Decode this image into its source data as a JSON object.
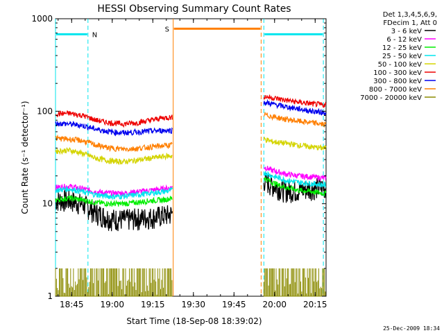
{
  "chart_data": {
    "type": "line",
    "title": "HESSI Observing Summary Count Rates",
    "xlabel": "Start Time (18-Sep-08 18:39:02)",
    "ylabel": "Count Rate (s⁻¹ detector⁻¹)",
    "y_scale": "log",
    "ylim": [
      1,
      1000
    ],
    "xlim_minutes_after_start": [
      0,
      100
    ],
    "x_ticks": [
      {
        "label": "18:45",
        "minute": 5.97
      },
      {
        "label": "19:00",
        "minute": 20.97
      },
      {
        "label": "19:15",
        "minute": 35.97
      },
      {
        "label": "19:30",
        "minute": 50.97
      },
      {
        "label": "19:45",
        "minute": 65.97
      },
      {
        "label": "20:00",
        "minute": 80.97
      },
      {
        "label": "20:15",
        "minute": 95.97
      }
    ],
    "y_ticks": [
      {
        "label": "1",
        "value": 1
      },
      {
        "label": "10",
        "value": 10
      },
      {
        "label": "100",
        "value": 100
      },
      {
        "label": "1000",
        "value": 1000
      }
    ],
    "legend": {
      "placement": "right",
      "header": [
        "Det 1,3,4,5,6,9,",
        "FDecim 1, Att 0"
      ],
      "entries": [
        {
          "label": "3 - 6 keV",
          "color": "#000000"
        },
        {
          "label": "6 - 12 keV",
          "color": "#ff00ff"
        },
        {
          "label": "12 - 25 keV",
          "color": "#00ee00"
        },
        {
          "label": "25 - 50 keV",
          "color": "#00e5ee"
        },
        {
          "label": "50 - 100 keV",
          "color": "#d4d400"
        },
        {
          "label": "100 - 300 keV",
          "color": "#ee0000"
        },
        {
          "label": "300 - 800 keV",
          "color": "#0000ee"
        },
        {
          "label": "800 - 7000 keV",
          "color": "#ff7f00"
        },
        {
          "label": "7000 - 20000 keV",
          "color": "#8b8b00"
        }
      ]
    },
    "segments": [
      [
        0,
        43.2
      ],
      [
        77.0,
        100
      ]
    ],
    "series": [
      {
        "label": "3 - 6 keV",
        "color": "#000000",
        "points": [
          [
            0,
            11
          ],
          [
            5,
            11
          ],
          [
            10,
            10
          ],
          [
            15,
            8
          ],
          [
            20,
            7
          ],
          [
            25,
            6.8
          ],
          [
            30,
            7
          ],
          [
            35,
            7.2
          ],
          [
            40,
            7.5
          ],
          [
            43,
            7.8
          ]
        ],
        "points2": [
          [
            77,
            18
          ],
          [
            80,
            16
          ],
          [
            85,
            14
          ],
          [
            90,
            14
          ],
          [
            95,
            15
          ],
          [
            99,
            15
          ]
        ]
      },
      {
        "label": "6 - 12 keV",
        "color": "#ff00ff",
        "points": [
          [
            0,
            15
          ],
          [
            5,
            15.5
          ],
          [
            10,
            14.5
          ],
          [
            15,
            13.5
          ],
          [
            20,
            13
          ],
          [
            25,
            13
          ],
          [
            30,
            13.5
          ],
          [
            35,
            14
          ],
          [
            40,
            14.5
          ],
          [
            43,
            15
          ]
        ],
        "points2": [
          [
            77,
            25
          ],
          [
            80,
            23
          ],
          [
            85,
            21
          ],
          [
            90,
            20
          ],
          [
            95,
            19.5
          ],
          [
            99,
            19
          ]
        ]
      },
      {
        "label": "12 - 25 keV",
        "color": "#00ee00",
        "points": [
          [
            0,
            11
          ],
          [
            5,
            11.5
          ],
          [
            10,
            11
          ],
          [
            15,
            10.3
          ],
          [
            20,
            10
          ],
          [
            25,
            10
          ],
          [
            30,
            10.3
          ],
          [
            35,
            10.8
          ],
          [
            40,
            11
          ],
          [
            43,
            11.5
          ]
        ],
        "points2": [
          [
            77,
            19
          ],
          [
            80,
            17
          ],
          [
            85,
            15
          ],
          [
            90,
            14
          ],
          [
            95,
            13.5
          ],
          [
            99,
            13
          ]
        ]
      },
      {
        "label": "25 - 50 keV",
        "color": "#00e5ee",
        "points": [
          [
            0,
            14
          ],
          [
            5,
            14.5
          ],
          [
            10,
            13.5
          ],
          [
            15,
            12.5
          ],
          [
            20,
            12
          ],
          [
            25,
            12
          ],
          [
            30,
            12.5
          ],
          [
            35,
            13
          ],
          [
            40,
            13.5
          ],
          [
            43,
            14
          ]
        ],
        "points2": [
          [
            77,
            22
          ],
          [
            80,
            20
          ],
          [
            85,
            18
          ],
          [
            90,
            17
          ],
          [
            95,
            16.5
          ],
          [
            99,
            16
          ]
        ]
      },
      {
        "label": "50 - 100 keV",
        "color": "#d4d400",
        "points": [
          [
            0,
            37
          ],
          [
            5,
            38
          ],
          [
            10,
            35
          ],
          [
            15,
            31
          ],
          [
            20,
            29
          ],
          [
            25,
            28.5
          ],
          [
            30,
            29.5
          ],
          [
            35,
            31
          ],
          [
            40,
            32.5
          ],
          [
            43,
            33
          ]
        ],
        "points2": [
          [
            77,
            50
          ],
          [
            80,
            47
          ],
          [
            85,
            45
          ],
          [
            90,
            43
          ],
          [
            95,
            41
          ],
          [
            99,
            40
          ]
        ]
      },
      {
        "label": "100 - 300 keV",
        "color": "#ee0000",
        "points": [
          [
            0,
            94
          ],
          [
            5,
            95
          ],
          [
            10,
            90
          ],
          [
            15,
            80
          ],
          [
            20,
            75
          ],
          [
            25,
            73
          ],
          [
            30,
            75
          ],
          [
            35,
            80
          ],
          [
            40,
            85
          ],
          [
            43,
            86
          ]
        ],
        "points2": [
          [
            77,
            145
          ],
          [
            80,
            140
          ],
          [
            85,
            132
          ],
          [
            90,
            125
          ],
          [
            95,
            120
          ],
          [
            99,
            117
          ]
        ]
      },
      {
        "label": "300 - 800 keV",
        "color": "#0000ee",
        "points": [
          [
            0,
            74
          ],
          [
            5,
            73
          ],
          [
            10,
            70
          ],
          [
            15,
            64
          ],
          [
            20,
            60
          ],
          [
            25,
            58.5
          ],
          [
            30,
            59.5
          ],
          [
            35,
            61
          ],
          [
            40,
            62
          ],
          [
            43,
            62
          ]
        ],
        "points2": [
          [
            77,
            125
          ],
          [
            80,
            120
          ],
          [
            85,
            112
          ],
          [
            90,
            106
          ],
          [
            95,
            100
          ],
          [
            99,
            97
          ]
        ]
      },
      {
        "label": "800 - 7000 keV",
        "color": "#ff7f00",
        "points": [
          [
            0,
            51
          ],
          [
            5,
            50
          ],
          [
            10,
            48
          ],
          [
            15,
            43
          ],
          [
            20,
            40
          ],
          [
            25,
            39
          ],
          [
            30,
            39.5
          ],
          [
            35,
            41
          ],
          [
            40,
            42.5
          ],
          [
            43,
            43
          ]
        ],
        "points2": [
          [
            77,
            92
          ],
          [
            80,
            88
          ],
          [
            85,
            82
          ],
          [
            90,
            78
          ],
          [
            95,
            75
          ],
          [
            99,
            72
          ]
        ]
      },
      {
        "label": "7000 - 20000 keV",
        "color": "#8b8b00",
        "points": [
          [
            0,
            1.0
          ],
          [
            43,
            1.0
          ]
        ],
        "points2": [
          [
            77,
            1.0
          ],
          [
            99,
            1.0
          ]
        ]
      }
    ],
    "annotations": [
      {
        "label": "N",
        "color": "#00e5ee",
        "x_range": [
          0,
          12
        ],
        "y": 680
      },
      {
        "label": "S",
        "color": "#ff7f00",
        "x_range": [
          43.5,
          76
        ],
        "y": 780
      },
      {
        "label": "",
        "color": "#00e5ee",
        "x_range": [
          77,
          99
        ],
        "y": 680
      }
    ],
    "flag_lines": [
      {
        "color": "#00e5ee",
        "x": 0
      },
      {
        "color": "#00e5ee",
        "x": 12
      },
      {
        "color": "#ff7f00",
        "x": 43.5
      },
      {
        "color": "#ff7f00",
        "x": 76
      },
      {
        "color": "#00e5ee",
        "x": 77
      },
      {
        "color": "#00e5ee",
        "x": 99
      }
    ],
    "footer_date": "25-Dec-2009 18:34"
  }
}
